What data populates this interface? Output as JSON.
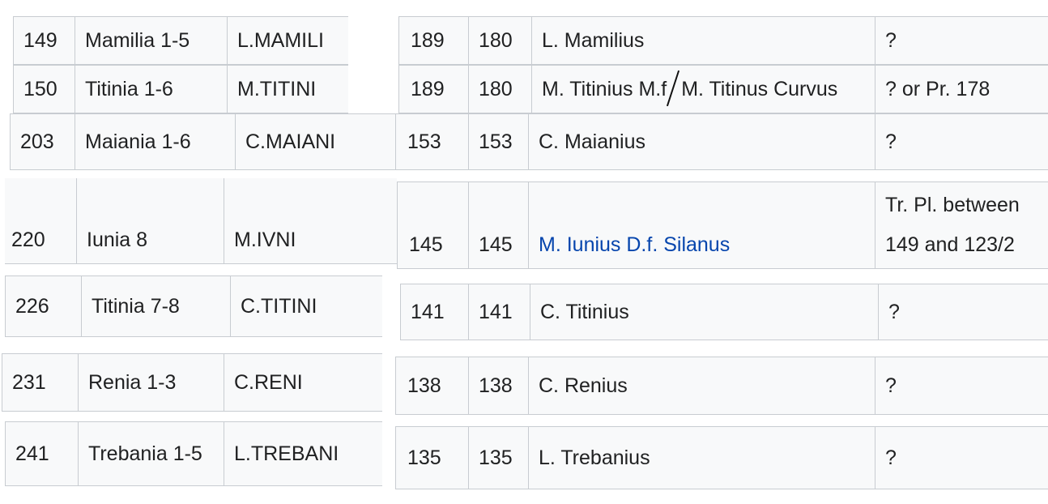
{
  "rows": [
    {
      "no": "149",
      "gens": "Mamilia 1-5",
      "legend": "L.MAMILI",
      "date1": "189",
      "date2": "180",
      "moneyer": "L. Mamilius",
      "office": "?"
    },
    {
      "no": "150",
      "gens": "Titinia 1-6",
      "legend": "M.TITINI",
      "date1": "189",
      "date2": "180",
      "moneyer_a": "M. Titinius M.f",
      "moneyer_b": "M. Titinus Curvus",
      "office": "? or Pr. 178"
    },
    {
      "no": "203",
      "gens": "Maiania 1-6",
      "legend": "C.MAIANI",
      "date1": "153",
      "date2": "153",
      "moneyer": "C. Maianius",
      "office": "?"
    },
    {
      "no": "220",
      "gens": "Iunia 8",
      "legend": "M.IVNI",
      "date1": "145",
      "date2": "145",
      "moneyer": "M. Iunius D.f. Silanus",
      "office_line1": "Tr. Pl. between",
      "office_line2": "149 and 123/2"
    },
    {
      "no": "226",
      "gens": "Titinia 7-8",
      "legend": "C.TITINI",
      "date1": "141",
      "date2": "141",
      "moneyer": "C. Titinius",
      "office": "?"
    },
    {
      "no": "231",
      "gens": "Renia 1-3",
      "legend": "C.RENI",
      "date1": "138",
      "date2": "138",
      "moneyer": "C. Renius",
      "office": "?"
    },
    {
      "no": "241",
      "gens": "Trebania 1-5",
      "legend": "L.TREBANI",
      "date1": "135",
      "date2": "135",
      "moneyer": "L. Trebanius",
      "office": "?"
    }
  ],
  "colors": {
    "link": "#0645ad",
    "cell_bg": "#f8f9fa",
    "border": "#c8ccd1"
  }
}
